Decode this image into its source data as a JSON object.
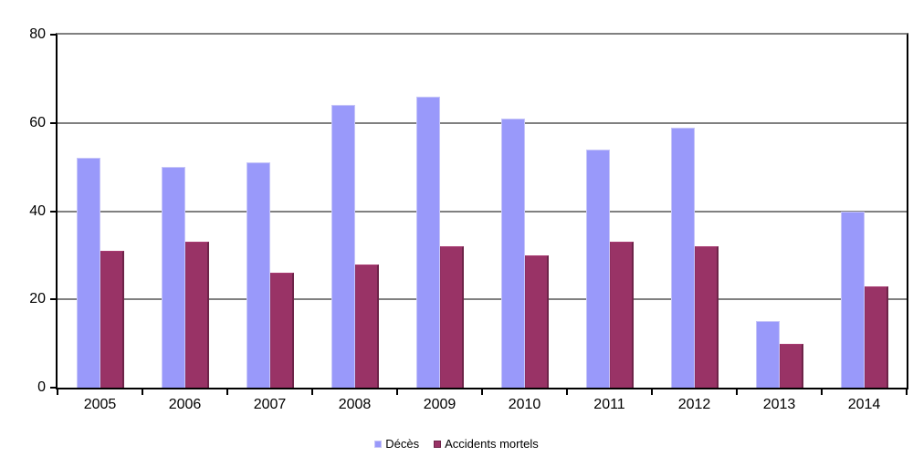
{
  "chart_data": {
    "type": "bar",
    "title": "",
    "xlabel": "",
    "ylabel": "",
    "categories": [
      "2005",
      "2006",
      "2007",
      "2008",
      "2009",
      "2010",
      "2011",
      "2012",
      "2013",
      "2014"
    ],
    "series": [
      {
        "name": "Décès",
        "key": "deces",
        "color": "#9999fa",
        "border_color": "#c6c5f8",
        "values": [
          52,
          50,
          51,
          64,
          66,
          61,
          54,
          59,
          15,
          40
        ]
      },
      {
        "name": "Accidents mortels",
        "key": "accidents-mortels",
        "color": "#993366",
        "border_color": "#6e2449",
        "values": [
          31,
          33,
          26,
          28,
          32,
          30,
          33,
          32,
          10,
          23
        ]
      }
    ],
    "ylim": [
      0,
      80
    ],
    "yticks": [
      0,
      20,
      40,
      60,
      80
    ],
    "grid": "horizontal",
    "legend_position": "bottom"
  },
  "colors": {
    "background": "#ffffff",
    "axis": "#000000",
    "plot_top_border": "#808080",
    "gridline": "#000000",
    "text": "#000000"
  }
}
